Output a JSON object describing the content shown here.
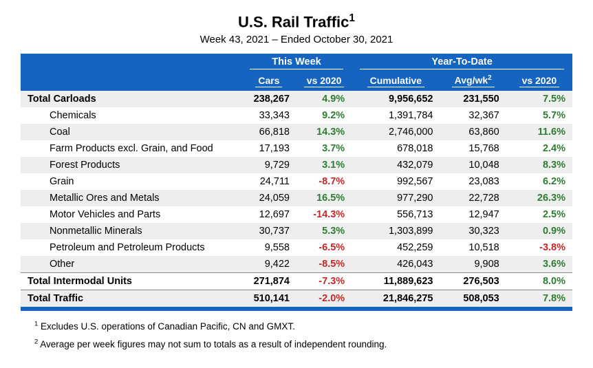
{
  "title": "U.S. Rail Traffic",
  "title_sup": "1",
  "subtitle": "Week 43, 2021 – Ended October 30, 2021",
  "group_headers": {
    "this_week": "This Week",
    "ytd": "Year-To-Date"
  },
  "sub_headers": {
    "cars": "Cars",
    "vs1": "vs 2020",
    "cumulative": "Cumulative",
    "avg": "Avg/wk",
    "avg_sup": "2",
    "vs2": "vs 2020"
  },
  "rows": [
    {
      "label": "Total Carloads",
      "bold": true,
      "indent": false,
      "cars": "238,267",
      "vs1": "4.9%",
      "vs1_dir": "pos",
      "cum": "9,956,652",
      "avg": "231,550",
      "vs2": "7.5%",
      "vs2_dir": "pos"
    },
    {
      "label": "Chemicals",
      "bold": false,
      "indent": true,
      "cars": "33,343",
      "vs1": "9.2%",
      "vs1_dir": "pos",
      "cum": "1,391,784",
      "avg": "32,367",
      "vs2": "5.7%",
      "vs2_dir": "pos"
    },
    {
      "label": "Coal",
      "bold": false,
      "indent": true,
      "cars": "66,818",
      "vs1": "14.3%",
      "vs1_dir": "pos",
      "cum": "2,746,000",
      "avg": "63,860",
      "vs2": "11.6%",
      "vs2_dir": "pos"
    },
    {
      "label": "Farm Products excl. Grain, and Food",
      "bold": false,
      "indent": true,
      "cars": "17,193",
      "vs1": "3.7%",
      "vs1_dir": "pos",
      "cum": "678,018",
      "avg": "15,768",
      "vs2": "2.4%",
      "vs2_dir": "pos"
    },
    {
      "label": "Forest Products",
      "bold": false,
      "indent": true,
      "cars": "9,729",
      "vs1": "3.1%",
      "vs1_dir": "pos",
      "cum": "432,079",
      "avg": "10,048",
      "vs2": "8.3%",
      "vs2_dir": "pos"
    },
    {
      "label": "Grain",
      "bold": false,
      "indent": true,
      "cars": "24,711",
      "vs1": "-8.7%",
      "vs1_dir": "neg",
      "cum": "992,567",
      "avg": "23,083",
      "vs2": "6.2%",
      "vs2_dir": "pos"
    },
    {
      "label": "Metallic Ores and Metals",
      "bold": false,
      "indent": true,
      "cars": "24,059",
      "vs1": "16.5%",
      "vs1_dir": "pos",
      "cum": "977,290",
      "avg": "22,728",
      "vs2": "26.3%",
      "vs2_dir": "pos"
    },
    {
      "label": "Motor Vehicles and Parts",
      "bold": false,
      "indent": true,
      "cars": "12,697",
      "vs1": "-14.3%",
      "vs1_dir": "neg",
      "cum": "556,713",
      "avg": "12,947",
      "vs2": "2.5%",
      "vs2_dir": "pos"
    },
    {
      "label": "Nonmetallic Minerals",
      "bold": false,
      "indent": true,
      "cars": "30,737",
      "vs1": "5.3%",
      "vs1_dir": "pos",
      "cum": "1,303,899",
      "avg": "30,323",
      "vs2": "0.9%",
      "vs2_dir": "pos"
    },
    {
      "label": "Petroleum and Petroleum Products",
      "bold": false,
      "indent": true,
      "cars": "9,558",
      "vs1": "-6.5%",
      "vs1_dir": "neg",
      "cum": "452,259",
      "avg": "10,518",
      "vs2": "-3.8%",
      "vs2_dir": "neg"
    },
    {
      "label": "Other",
      "bold": false,
      "indent": true,
      "cars": "9,422",
      "vs1": "-8.5%",
      "vs1_dir": "neg",
      "cum": "426,043",
      "avg": "9,908",
      "vs2": "3.6%",
      "vs2_dir": "pos"
    },
    {
      "label": "Total Intermodal Units",
      "bold": true,
      "indent": false,
      "cars": "271,874",
      "vs1": "-7.3%",
      "vs1_dir": "neg",
      "cum": "11,889,623",
      "avg": "276,503",
      "vs2": "8.0%",
      "vs2_dir": "pos",
      "sep_before": true
    },
    {
      "label": "Total Traffic",
      "bold": true,
      "indent": false,
      "cars": "510,141",
      "vs1": "-2.0%",
      "vs1_dir": "neg",
      "cum": "21,846,275",
      "avg": "508,053",
      "vs2": "7.8%",
      "vs2_dir": "pos",
      "sep_before": true
    }
  ],
  "footnotes": [
    {
      "num": "1",
      "text": " Excludes U.S. operations of Canadian Pacific, CN and GMXT."
    },
    {
      "num": "2",
      "text": " Average per week figures may not sum to totals as a result of independent rounding."
    }
  ],
  "colors": {
    "header_bg": "#1565c0",
    "stripe": "#eeeeee",
    "positive": "#2e7d32",
    "negative": "#c62828"
  }
}
